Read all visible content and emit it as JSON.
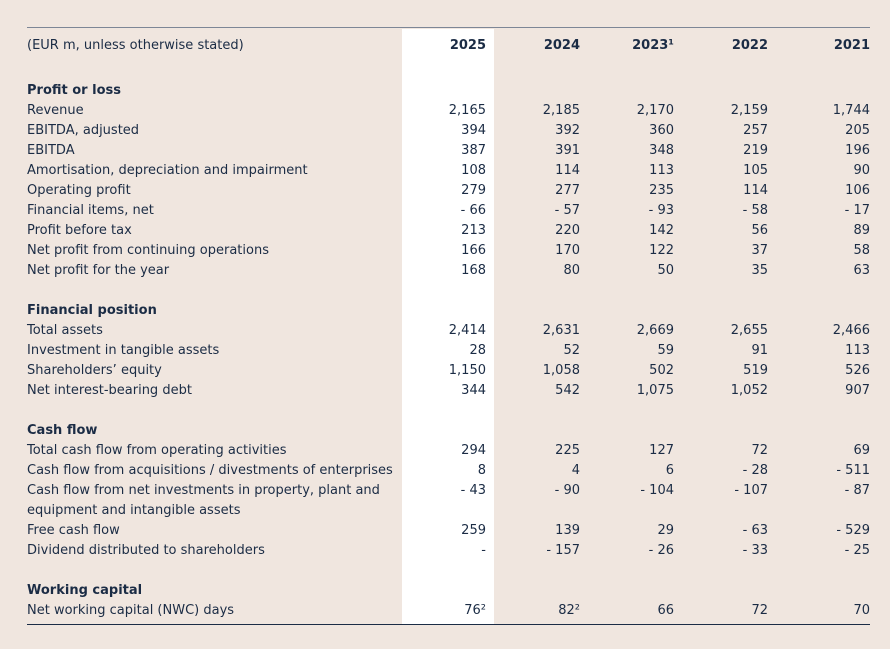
{
  "header": {
    "unit_note": "(EUR m, unless otherwise stated)",
    "years": [
      "2025",
      "2024",
      "2023¹",
      "2022",
      "2021"
    ]
  },
  "sections": [
    {
      "title": "Profit or loss",
      "rows": [
        {
          "label": "Revenue",
          "values": [
            "2,165",
            "2,185",
            "2,170",
            "2,159",
            "1,744"
          ]
        },
        {
          "label": "EBITDA, adjusted",
          "values": [
            "394",
            "392",
            "360",
            "257",
            "205"
          ]
        },
        {
          "label": "EBITDA",
          "values": [
            "387",
            "391",
            "348",
            "219",
            "196"
          ]
        },
        {
          "label": "Amortisation, depreciation and impairment",
          "values": [
            "108",
            "114",
            "113",
            "105",
            "90"
          ]
        },
        {
          "label": "Operating profit",
          "values": [
            "279",
            "277",
            "235",
            "114",
            "106"
          ]
        },
        {
          "label": "Financial items, net",
          "values": [
            "- 66",
            "- 57",
            "- 93",
            "- 58",
            "- 17"
          ]
        },
        {
          "label": "Profit before tax",
          "values": [
            "213",
            "220",
            "142",
            "56",
            "89"
          ]
        },
        {
          "label": "Net profit from continuing operations",
          "values": [
            "166",
            "170",
            "122",
            "37",
            "58"
          ]
        },
        {
          "label": "Net profit for the year",
          "values": [
            "168",
            "80",
            "50",
            "35",
            "63"
          ]
        }
      ]
    },
    {
      "title": "Financial position",
      "rows": [
        {
          "label": "Total assets",
          "values": [
            "2,414",
            "2,631",
            "2,669",
            "2,655",
            "2,466"
          ]
        },
        {
          "label": "Investment in tangible assets",
          "values": [
            "28",
            "52",
            "59",
            "91",
            "113"
          ]
        },
        {
          "label": "Shareholders’ equity",
          "values": [
            "1,150",
            "1,058",
            "502",
            "519",
            "526"
          ]
        },
        {
          "label": "Net interest-bearing debt",
          "values": [
            "344",
            "542",
            "1,075",
            "1,052",
            "907"
          ]
        }
      ]
    },
    {
      "title": "Cash flow",
      "rows": [
        {
          "label": "Total cash flow from operating activities",
          "values": [
            "294",
            "225",
            "127",
            "72",
            "69"
          ]
        },
        {
          "label": "Cash flow from acquisitions / divestments of enterprises",
          "values": [
            "8",
            "4",
            "6",
            "- 28",
            "- 511"
          ]
        },
        {
          "label": "Cash flow from net investments in property, plant and equipment and intangible assets",
          "values": [
            "- 43",
            "- 90",
            "- 104",
            "- 107",
            "- 87"
          ]
        },
        {
          "label": "Free cash flow",
          "values": [
            "259",
            "139",
            "29",
            "- 63",
            "- 529"
          ]
        },
        {
          "label": "Dividend distributed to shareholders",
          "values": [
            "-",
            "- 157",
            "- 26",
            "- 33",
            "- 25"
          ]
        }
      ]
    },
    {
      "title": "Working capital",
      "rows": [
        {
          "label": "Net working capital (NWC) days",
          "values": [
            "76²",
            "82²",
            "66",
            "72",
            "70"
          ]
        }
      ]
    }
  ]
}
